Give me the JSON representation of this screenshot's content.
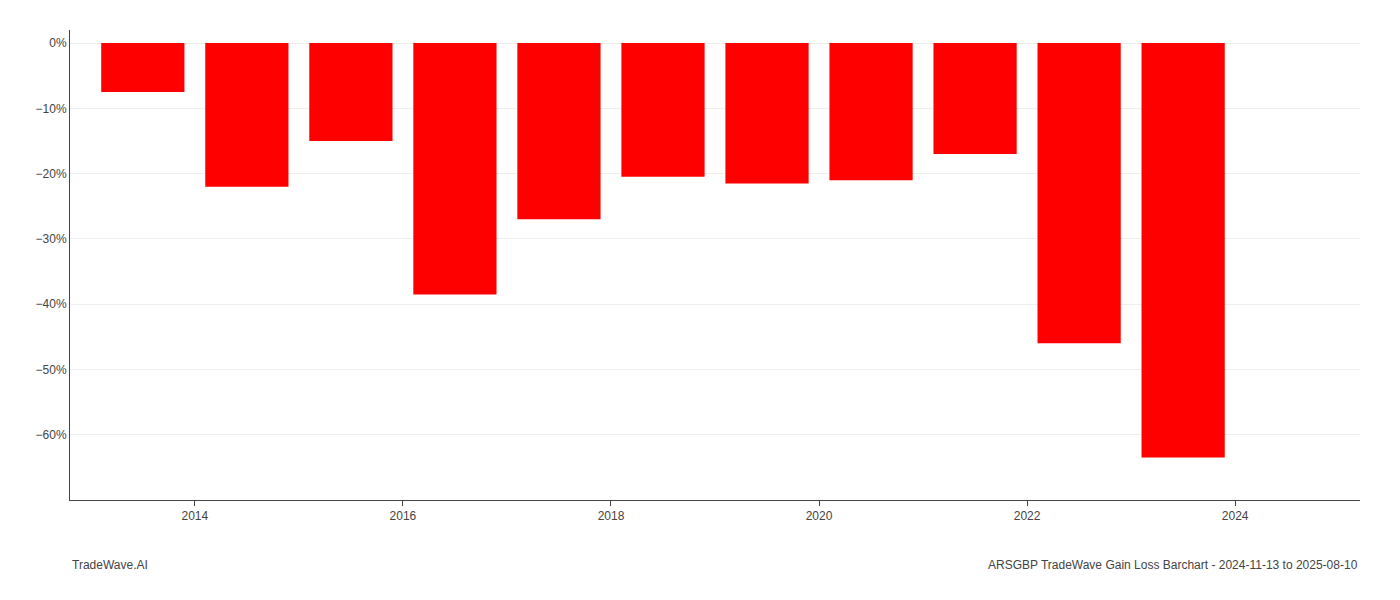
{
  "chart_data": {
    "type": "bar",
    "x": [
      2013.5,
      2014.5,
      2015.5,
      2016.5,
      2017.5,
      2018.5,
      2019.5,
      2020.5,
      2021.5,
      2022.5,
      2023.5
    ],
    "values": [
      -7.5,
      -22.0,
      -15.0,
      -38.5,
      -27.0,
      -20.5,
      -21.5,
      -21.0,
      -17.0,
      -46.0,
      -63.5
    ],
    "color": "#ff0000",
    "xlim": [
      2012.8,
      2025.2
    ],
    "xticks": [
      2014,
      2016,
      2018,
      2020,
      2022,
      2024
    ],
    "ylim": [
      -70,
      2
    ],
    "yticks": [
      {
        "value": 0,
        "label": "0%"
      },
      {
        "value": -10,
        "label": "−10%"
      },
      {
        "value": -20,
        "label": "−20%"
      },
      {
        "value": -30,
        "label": "−30%"
      },
      {
        "value": -40,
        "label": "−40%"
      },
      {
        "value": -50,
        "label": "−50%"
      },
      {
        "value": -60,
        "label": "−60%"
      }
    ],
    "grid": true,
    "annotations": [
      "TradeWave.AI",
      "ARSGBP TradeWave Gain Loss Barchart - 2024-11-13 to 2025-08-10"
    ]
  }
}
